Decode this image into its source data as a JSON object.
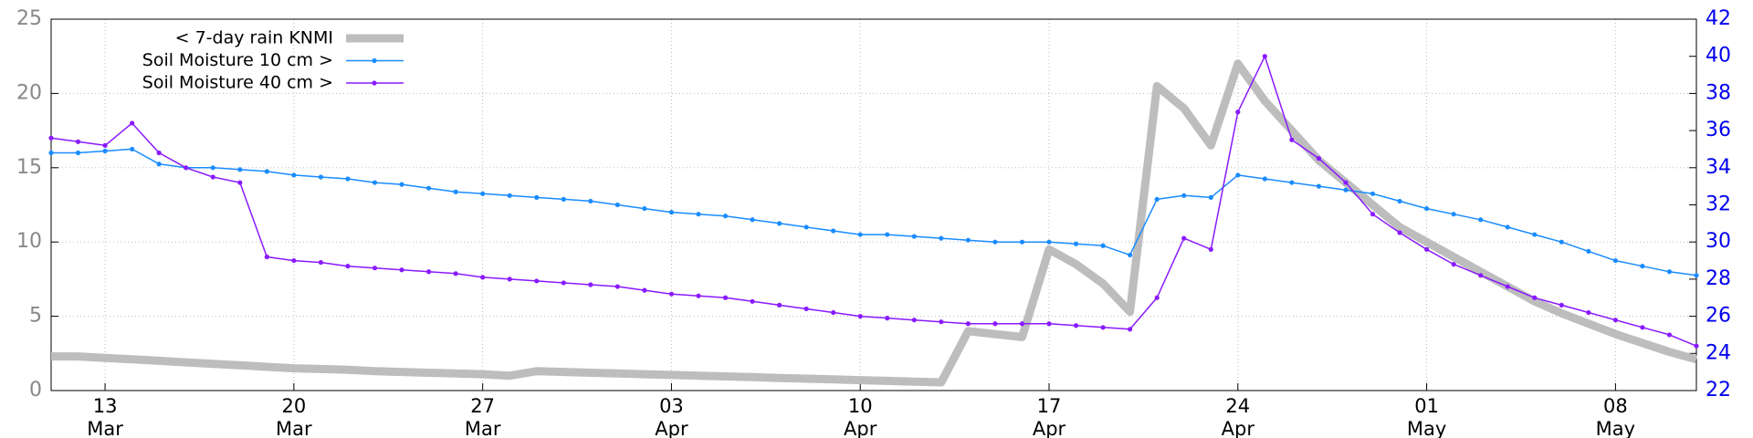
{
  "chart_data": {
    "type": "line",
    "x": [
      "11 Mar",
      "12 Mar",
      "13 Mar",
      "14 Mar",
      "15 Mar",
      "16 Mar",
      "17 Mar",
      "18 Mar",
      "19 Mar",
      "20 Mar",
      "21 Mar",
      "22 Mar",
      "23 Mar",
      "24 Mar",
      "25 Mar",
      "26 Mar",
      "27 Mar",
      "28 Mar",
      "29 Mar",
      "30 Mar",
      "31 Mar",
      "1 Apr",
      "2 Apr",
      "3 Apr",
      "4 Apr",
      "5 Apr",
      "6 Apr",
      "7 Apr",
      "8 Apr",
      "9 Apr",
      "10 Apr",
      "11 Apr",
      "12 Apr",
      "13 Apr",
      "14 Apr",
      "15 Apr",
      "16 Apr",
      "17 Apr",
      "18 Apr",
      "19 Apr",
      "20 Apr",
      "21 Apr",
      "22 Apr",
      "23 Apr",
      "24 Apr",
      "25 Apr",
      "26 Apr",
      "27 Apr",
      "28 Apr",
      "29 Apr",
      "30 Apr",
      "1 May",
      "2 May",
      "3 May",
      "4 May",
      "5 May",
      "6 May",
      "7 May",
      "8 May",
      "9 May",
      "10 May",
      "11 May"
    ],
    "series": [
      {
        "name": "< 7-day rain KNMI",
        "color": "#bdbdbd",
        "axis": "y",
        "line_width": 9,
        "marker": false,
        "values": [
          2.3,
          2.3,
          2.2,
          2.1,
          2.0,
          1.9,
          1.8,
          1.7,
          1.6,
          1.5,
          1.45,
          1.4,
          1.3,
          1.25,
          1.2,
          1.15,
          1.1,
          1.0,
          1.3,
          1.25,
          1.2,
          1.15,
          1.1,
          1.05,
          1.0,
          0.95,
          0.9,
          0.85,
          0.8,
          0.75,
          0.7,
          0.65,
          0.6,
          0.55,
          4.0,
          3.8,
          3.6,
          9.5,
          8.5,
          7.2,
          5.3,
          20.5,
          19,
          16.5,
          22,
          19.5,
          17.5,
          15.5,
          14,
          12.5,
          11,
          10,
          9,
          8,
          7,
          6,
          5.2,
          4.5,
          3.8,
          3.2,
          2.6,
          2.1
        ]
      },
      {
        "name": "Soil Moisture 10 cm >",
        "color": "#1a8cff",
        "axis": "y2",
        "line_width": 1.5,
        "marker": true,
        "values": [
          34.8,
          34.8,
          34.9,
          35.0,
          34.2,
          34.0,
          34.0,
          33.9,
          33.8,
          33.6,
          33.5,
          33.4,
          33.2,
          33.1,
          32.9,
          32.7,
          32.6,
          32.5,
          32.4,
          32.3,
          32.2,
          32.0,
          31.8,
          31.6,
          31.5,
          31.4,
          31.2,
          31.0,
          30.8,
          30.6,
          30.4,
          30.4,
          30.3,
          30.2,
          30.1,
          30.0,
          30.0,
          30.0,
          29.9,
          29.8,
          29.3,
          32.3,
          32.5,
          32.4,
          33.6,
          33.4,
          33.2,
          33.0,
          32.8,
          32.6,
          32.2,
          31.8,
          31.5,
          31.2,
          30.8,
          30.4,
          30.0,
          29.5,
          29.0,
          28.7,
          28.4,
          28.2
        ]
      },
      {
        "name": "Soil Moisture 40 cm >",
        "color": "#8a1aff",
        "axis": "y2",
        "line_width": 1.5,
        "marker": true,
        "values": [
          35.6,
          35.4,
          35.2,
          36.4,
          34.8,
          34.0,
          33.5,
          33.2,
          29.2,
          29.0,
          28.9,
          28.7,
          28.6,
          28.5,
          28.4,
          28.3,
          28.1,
          28.0,
          27.9,
          27.8,
          27.7,
          27.6,
          27.4,
          27.2,
          27.1,
          27.0,
          26.8,
          26.6,
          26.4,
          26.2,
          26.0,
          25.9,
          25.8,
          25.7,
          25.6,
          25.6,
          25.6,
          25.6,
          25.5,
          25.4,
          25.3,
          27.0,
          30.2,
          29.6,
          37.0,
          40.0,
          35.5,
          34.5,
          33.2,
          31.5,
          30.5,
          29.6,
          28.8,
          28.2,
          27.6,
          27.0,
          26.6,
          26.2,
          25.8,
          25.4,
          25.0,
          24.4
        ]
      }
    ],
    "xlim": [
      "11 Mar",
      "11 May"
    ],
    "xticks": [
      "13 Mar",
      "20 Mar",
      "27 Mar",
      "03 Apr",
      "10 Apr",
      "17 Apr",
      "24 Apr",
      "01 May",
      "08 May"
    ],
    "ylim": [
      0,
      25
    ],
    "yticks": [
      0,
      5,
      10,
      15,
      20,
      25
    ],
    "y2lim": [
      22,
      42
    ],
    "y2ticks": [
      22,
      24,
      26,
      28,
      30,
      32,
      34,
      36,
      38,
      40,
      42
    ],
    "grid": true,
    "legend": "upper left"
  }
}
